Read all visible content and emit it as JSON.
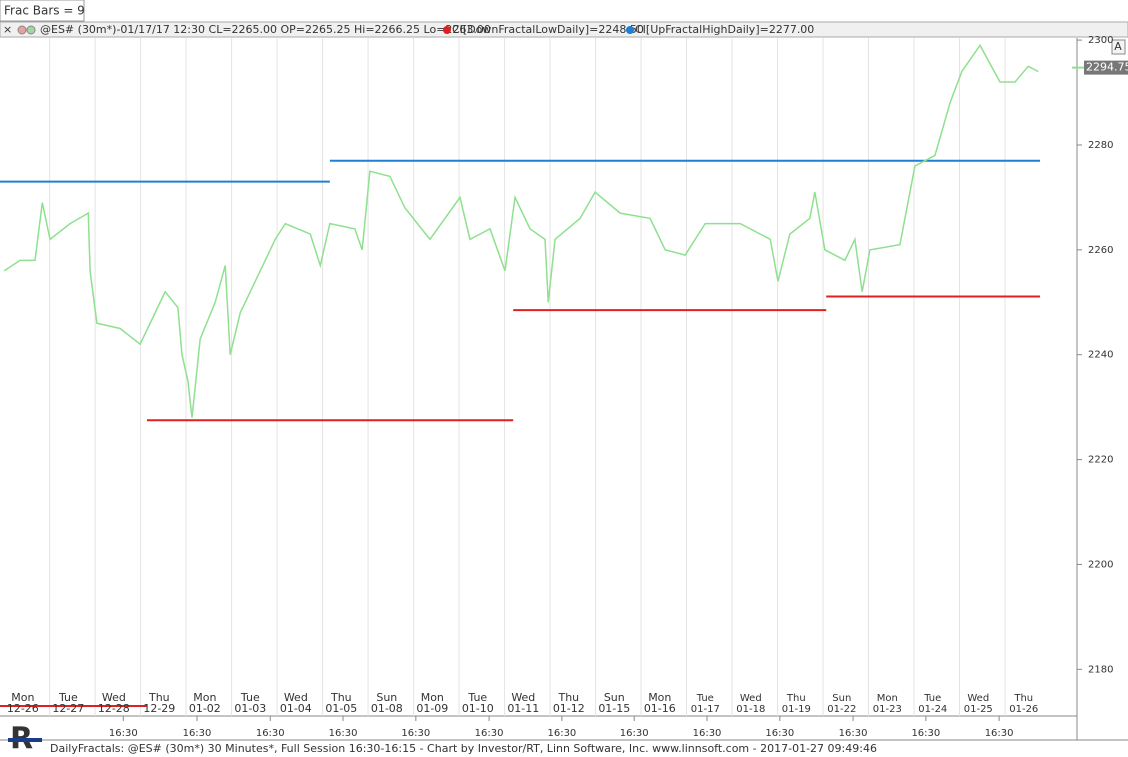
{
  "chart_data": {
    "type": "line",
    "header": "Frac Bars = 9",
    "legend": {
      "symbol": "@ES# (30m*)-01/17/17 12:30 CL=2265.00 OP=2265.25 Hi=2266.25 Lo=2263.00",
      "down": "CI[DownFractalLowDaily]=2248.50",
      "up": "CI[UpFractalHighDaily]=2277.00"
    },
    "axis_button": "A",
    "footer": "DailyFractals: @ES# (30m*) 30 Minutes*, Full Session 16:30-16:15 - Chart by Investor/RT, Linn Software, Inc. www.linnsoft.com - 2017-01-27 09:49:46",
    "xlim": [
      -0.09,
      23.56
    ],
    "ylim": [
      2171.1,
      2300.4
    ],
    "yticks": [
      2180,
      2200,
      2220,
      2240,
      2260,
      2280,
      2300
    ],
    "grid": true,
    "days": [
      {
        "weekday": "Mon",
        "date": "12-26"
      },
      {
        "weekday": "Tue",
        "date": "12-27"
      },
      {
        "weekday": "Wed",
        "date": "12-28"
      },
      {
        "weekday": "Thu",
        "date": "12-29"
      },
      {
        "weekday": "Mon",
        "date": "01-02"
      },
      {
        "weekday": "Tue",
        "date": "01-03"
      },
      {
        "weekday": "Wed",
        "date": "01-04"
      },
      {
        "weekday": "Thu",
        "date": "01-05"
      },
      {
        "weekday": "Sun",
        "date": "01-08"
      },
      {
        "weekday": "Mon",
        "date": "01-09"
      },
      {
        "weekday": "Tue",
        "date": "01-10"
      },
      {
        "weekday": "Wed",
        "date": "01-11"
      },
      {
        "weekday": "Thu",
        "date": "01-12"
      },
      {
        "weekday": "Sun",
        "date": "01-15"
      },
      {
        "weekday": "Mon",
        "date": "01-16"
      },
      {
        "weekday": "Tue",
        "date": "01-17"
      },
      {
        "weekday": "Wed",
        "date": "01-18"
      },
      {
        "weekday": "Thu",
        "date": "01-19"
      },
      {
        "weekday": "Sun",
        "date": "01-22"
      },
      {
        "weekday": "Mon",
        "date": "01-23"
      },
      {
        "weekday": "Tue",
        "date": "01-24"
      },
      {
        "weekday": "Wed",
        "date": "01-25"
      },
      {
        "weekday": "Thu",
        "date": "01-26"
      }
    ],
    "time_labels": {
      "label": "16:30",
      "x": [
        2.62,
        4.24,
        5.85,
        7.45,
        9.05,
        10.66,
        12.26,
        13.85,
        15.45,
        17.05,
        18.66,
        20.26,
        21.87
      ]
    },
    "series": [
      {
        "color": "#8fe08f",
        "x": [
          0,
          0.35,
          0.68,
          0.84,
          1.01,
          1.45,
          1.85,
          1.89,
          2.04,
          2.55,
          2.99,
          3.21,
          3.54,
          3.82,
          3.91,
          4.04,
          4.13,
          4.31,
          4.64,
          4.86,
          4.97,
          5.19,
          5.52,
          5.96,
          6.18,
          6.73,
          6.95,
          7.16,
          7.71,
          7.87,
          8.04,
          8.48,
          8.81,
          9.36,
          10.02,
          10.24,
          10.68,
          11.01,
          11.23,
          11.56,
          11.89,
          11.96,
          12.11,
          12.66,
          12.99,
          13.54,
          14.2,
          14.53,
          14.97,
          15.41,
          16.18,
          16.84,
          17.01,
          17.27,
          17.71,
          17.82,
          18.04,
          18.48,
          18.7,
          18.86,
          19.03,
          19.69,
          20.02,
          20.46,
          20.79,
          21.05,
          21.45,
          21.89,
          22.22,
          22.51,
          22.73
        ],
        "values": [
          2256,
          2258,
          2258,
          2269,
          2262,
          2265,
          2267,
          2256,
          2246,
          2245,
          2242,
          2246,
          2252,
          2249,
          2240,
          2235,
          2228,
          2243,
          2250,
          2257,
          2240,
          2248,
          2254,
          2262,
          2265,
          2263,
          2257,
          2265,
          2264,
          2260,
          2275,
          2274,
          2268,
          2262,
          2270,
          2262,
          2264,
          2256,
          2270,
          2264,
          2262,
          2250,
          2262,
          2266,
          2271,
          2267,
          2266,
          2260,
          2259,
          2265,
          2265,
          2262,
          2254,
          2263,
          2266,
          2271,
          2260,
          2258,
          2262,
          2252,
          2260,
          2261,
          2276,
          2278,
          2288,
          2294,
          2299,
          2292,
          2292,
          2295,
          2294
        ]
      }
    ],
    "levels": [
      {
        "color": "#1f7fd4",
        "value": 2273,
        "x": [
          -0.09,
          7.16
        ]
      },
      {
        "color": "#1f7fd4",
        "value": 2277,
        "x": [
          7.16,
          22.77
        ]
      },
      {
        "color": "#e02020",
        "value": 2173,
        "x": [
          -0.09,
          3.14
        ]
      },
      {
        "color": "#e02020",
        "value": 2227.5,
        "x": [
          3.14,
          11.19
        ]
      },
      {
        "color": "#e02020",
        "value": 2248.5,
        "x": [
          11.19,
          18.07
        ]
      },
      {
        "color": "#e02020",
        "value": 2251.1,
        "x": [
          18.07,
          22.77
        ]
      }
    ],
    "last_price": {
      "value": 2294.75,
      "label": "2294.75"
    }
  }
}
